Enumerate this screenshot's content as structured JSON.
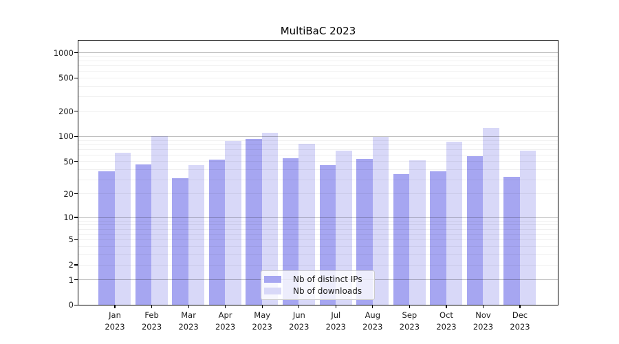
{
  "title": "MultiBaC 2023",
  "chart_data": {
    "type": "bar",
    "title": "MultiBaC 2023",
    "categories": [
      "Jan 2023",
      "Feb 2023",
      "Mar 2023",
      "Apr 2023",
      "May 2023",
      "Jun 2023",
      "Jul 2023",
      "Aug 2023",
      "Sep 2023",
      "Oct 2023",
      "Nov 2023",
      "Dec 2023"
    ],
    "series": [
      {
        "name": "Nb of distinct IPs",
        "key": "distinct-ips",
        "color": "#a6a6f1",
        "values": [
          38,
          46,
          31,
          52,
          93,
          54,
          45,
          53,
          35,
          38,
          58,
          32
        ]
      },
      {
        "name": "Nb of downloads",
        "key": "downloads",
        "color": "#d8d8f8",
        "values": [
          63,
          100,
          45,
          88,
          110,
          81,
          67,
          98,
          51,
          86,
          125,
          67
        ]
      }
    ],
    "yscale": "log1p",
    "ylim": [
      0,
      1373
    ],
    "yticks": [
      0,
      1,
      2,
      5,
      10,
      20,
      50,
      100,
      200,
      500,
      1000
    ],
    "grid_major": [
      1,
      10,
      100,
      1000
    ],
    "grid_minor_decades": [
      1,
      10,
      100
    ],
    "xlabel": "",
    "ylabel": "",
    "legend_position": "lower-center",
    "colors": {
      "grid_major": "#c4c4c4",
      "grid_minor": "#ededed",
      "spine": "#000000",
      "background": "#ffffff"
    }
  }
}
